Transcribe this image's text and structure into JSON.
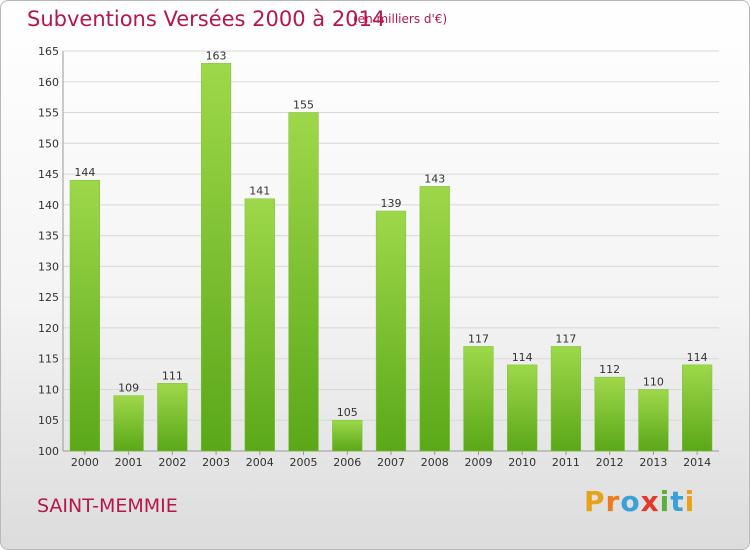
{
  "title": "Subventions Versées 2000 à 2014",
  "unit_note": "(en milliers d'€)",
  "commune": "SAINT-MEMMIE",
  "logo": {
    "text": "Proxiti",
    "letter_colors": [
      "#e8a21a",
      "#f07a1a",
      "#3aa0d8",
      "#e23a2a",
      "#5ab03a",
      "#3aa0d8",
      "#e8a21a"
    ]
  },
  "colors": {
    "title": "#b5174a",
    "bar_light": "#9ed84a",
    "bar_dark": "#5aa818",
    "grid": "#d8d8d8"
  },
  "chart_data": {
    "type": "bar",
    "title": "Subventions Versées 2000 à 2014",
    "xlabel": "",
    "ylabel": "",
    "categories": [
      "2000",
      "2001",
      "2002",
      "2003",
      "2004",
      "2005",
      "2006",
      "2007",
      "2008",
      "2009",
      "2010",
      "2011",
      "2012",
      "2013",
      "2014"
    ],
    "values": [
      144,
      109,
      111,
      163,
      141,
      155,
      105,
      139,
      143,
      117,
      114,
      117,
      112,
      110,
      114
    ],
    "ylim": [
      100,
      165
    ],
    "yticks": [
      100,
      105,
      110,
      115,
      120,
      125,
      130,
      135,
      140,
      145,
      150,
      155,
      160,
      165
    ],
    "grid": true,
    "data_labels": true
  }
}
